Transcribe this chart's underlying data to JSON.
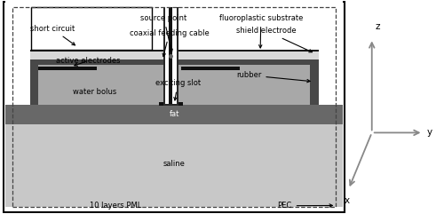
{
  "bg_color": "#ffffff",
  "colors": {
    "white": "#ffffff",
    "light_gray": "#c8c8c8",
    "medium_gray": "#a8a8a8",
    "dark_gray": "#686868",
    "very_dark": "#282828",
    "black": "#111111",
    "fluoro": "#d8d8d8",
    "rubber_dark": "#484848"
  },
  "labels": {
    "short_circuit": "short circuit",
    "source_point": "source point",
    "fluoroplastic": "fluoroplastic substrate",
    "coaxial": "coaxial feeding cable",
    "shield_electrode": "shield electrode",
    "active_electrodes": "active electrodes",
    "exciting_slot": "exciting slot",
    "rubber": "rubber",
    "water_bolus": "water bolus",
    "fat": "fat",
    "saline": "saline",
    "pml": "10 layers PML",
    "pec": "PEC"
  },
  "axis_label_z": "z",
  "axis_label_y": "y",
  "axis_label_x": "x",
  "fontsize": 6.0,
  "fontsize_axis": 7.5
}
